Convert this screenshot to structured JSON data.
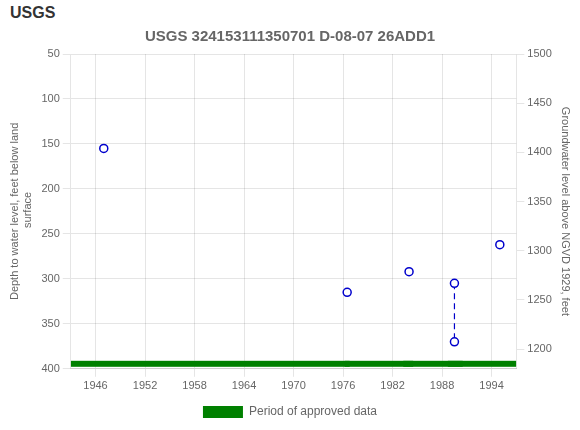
{
  "chart_data": {
    "type": "scatter",
    "title": "USGS 324153111350701 D-08-07 26ADD1",
    "annotations": [
      {
        "text": "USGS"
      }
    ],
    "y_label": "Depth to water level, feet below land\n surface",
    "y2_label": "Groundwater level above NGVD 1929, feet",
    "xlim": [
      1943,
      1997
    ],
    "xticks": [
      1946,
      1952,
      1958,
      1964,
      1970,
      1976,
      1982,
      1988,
      1994
    ],
    "ylim": [
      400,
      50
    ],
    "yticks": [
      50,
      100,
      150,
      200,
      250,
      300,
      350,
      400
    ],
    "y2lim": [
      1180,
      1500
    ],
    "y2ticks": [
      1500,
      1450,
      1400,
      1350,
      1300,
      1250,
      1200
    ],
    "grid": true,
    "legend": "bottom",
    "series": [
      {
        "type": "scatter",
        "color": "#0000cc",
        "marker": "circle",
        "x": [
          1947.0,
          1976.5,
          1984.0,
          1989.5,
          1989.5,
          1995.0
        ],
        "values": [
          155,
          315,
          292,
          305,
          370,
          262
        ]
      },
      {
        "type": "line",
        "color": "#0000cc",
        "line_style": "dashed",
        "x": [
          1989.5,
          1989.5
        ],
        "values": [
          305,
          370
        ]
      },
      {
        "name": "Period of approved data",
        "type": "bar",
        "orientation": "horizontal",
        "color": "#008000",
        "periods": [
          {
            "start": 1943.0,
            "end": 1997.0
          },
          {
            "start": 1976.2,
            "end": 1976.8
          },
          {
            "start": 1983.3,
            "end": 1984.5
          },
          {
            "start": 1988.7,
            "end": 1990.5
          }
        ]
      }
    ]
  }
}
